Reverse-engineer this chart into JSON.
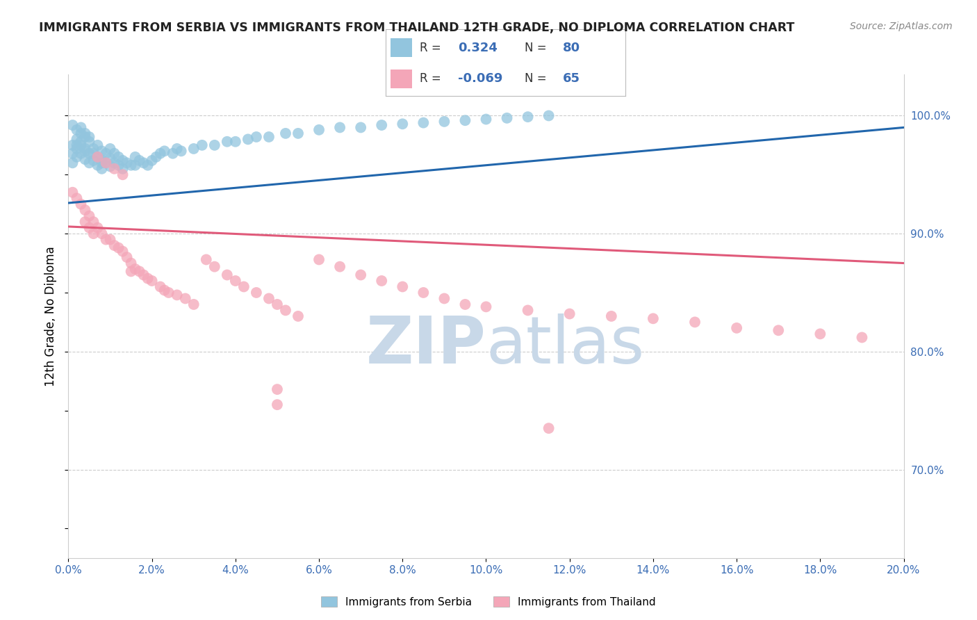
{
  "title": "IMMIGRANTS FROM SERBIA VS IMMIGRANTS FROM THAILAND 12TH GRADE, NO DIPLOMA CORRELATION CHART",
  "source": "Source: ZipAtlas.com",
  "ylabel": "12th Grade, No Diploma",
  "serbia_R": 0.324,
  "serbia_N": 80,
  "thailand_R": -0.069,
  "thailand_N": 65,
  "serbia_color": "#92c5de",
  "thailand_color": "#f4a6b8",
  "serbia_line_color": "#2166ac",
  "thailand_line_color": "#e05a7a",
  "watermark_zip": "ZIP",
  "watermark_atlas": "atlas",
  "watermark_color_zip": "#c8d8e8",
  "watermark_color_atlas": "#c8d8e8",
  "x_min": 0.0,
  "x_max": 0.2,
  "y_min": 0.625,
  "y_max": 1.035,
  "y_ticks": [
    0.7,
    0.8,
    0.9,
    1.0
  ],
  "serbia_x": [
    0.001,
    0.001,
    0.001,
    0.002,
    0.002,
    0.002,
    0.003,
    0.003,
    0.003,
    0.004,
    0.004,
    0.004,
    0.005,
    0.005,
    0.005,
    0.006,
    0.006,
    0.007,
    0.007,
    0.007,
    0.008,
    0.008,
    0.008,
    0.009,
    0.009,
    0.01,
    0.01,
    0.01,
    0.011,
    0.011,
    0.012,
    0.012,
    0.013,
    0.013,
    0.014,
    0.015,
    0.016,
    0.016,
    0.017,
    0.018,
    0.019,
    0.02,
    0.021,
    0.022,
    0.023,
    0.025,
    0.026,
    0.027,
    0.03,
    0.032,
    0.035,
    0.038,
    0.04,
    0.043,
    0.045,
    0.048,
    0.052,
    0.055,
    0.06,
    0.065,
    0.07,
    0.075,
    0.08,
    0.085,
    0.09,
    0.095,
    0.1,
    0.105,
    0.11,
    0.115,
    0.001,
    0.002,
    0.003,
    0.004,
    0.005,
    0.002,
    0.003,
    0.004,
    0.006,
    0.008
  ],
  "serbia_y": [
    0.975,
    0.968,
    0.96,
    0.98,
    0.972,
    0.965,
    0.985,
    0.975,
    0.968,
    0.982,
    0.97,
    0.963,
    0.978,
    0.968,
    0.96,
    0.972,
    0.962,
    0.975,
    0.965,
    0.958,
    0.97,
    0.962,
    0.955,
    0.968,
    0.96,
    0.972,
    0.964,
    0.957,
    0.968,
    0.96,
    0.965,
    0.958,
    0.962,
    0.955,
    0.96,
    0.958,
    0.965,
    0.958,
    0.962,
    0.96,
    0.958,
    0.962,
    0.965,
    0.968,
    0.97,
    0.968,
    0.972,
    0.97,
    0.972,
    0.975,
    0.975,
    0.978,
    0.978,
    0.98,
    0.982,
    0.982,
    0.985,
    0.985,
    0.988,
    0.99,
    0.99,
    0.992,
    0.993,
    0.994,
    0.995,
    0.996,
    0.997,
    0.998,
    0.999,
    1.0,
    0.992,
    0.988,
    0.99,
    0.985,
    0.982,
    0.975,
    0.978,
    0.972,
    0.968,
    0.96
  ],
  "thailand_x": [
    0.001,
    0.002,
    0.003,
    0.004,
    0.004,
    0.005,
    0.005,
    0.006,
    0.006,
    0.007,
    0.008,
    0.009,
    0.01,
    0.011,
    0.012,
    0.013,
    0.014,
    0.015,
    0.015,
    0.016,
    0.017,
    0.018,
    0.019,
    0.02,
    0.022,
    0.023,
    0.024,
    0.026,
    0.028,
    0.03,
    0.033,
    0.035,
    0.038,
    0.04,
    0.042,
    0.045,
    0.048,
    0.05,
    0.052,
    0.055,
    0.06,
    0.065,
    0.07,
    0.075,
    0.08,
    0.085,
    0.09,
    0.095,
    0.1,
    0.11,
    0.12,
    0.13,
    0.14,
    0.15,
    0.16,
    0.17,
    0.18,
    0.19,
    0.007,
    0.009,
    0.011,
    0.013,
    0.05,
    0.05,
    0.115
  ],
  "thailand_y": [
    0.935,
    0.93,
    0.925,
    0.92,
    0.91,
    0.915,
    0.905,
    0.91,
    0.9,
    0.905,
    0.9,
    0.895,
    0.895,
    0.89,
    0.888,
    0.885,
    0.88,
    0.875,
    0.868,
    0.87,
    0.868,
    0.865,
    0.862,
    0.86,
    0.855,
    0.852,
    0.85,
    0.848,
    0.845,
    0.84,
    0.878,
    0.872,
    0.865,
    0.86,
    0.855,
    0.85,
    0.845,
    0.84,
    0.835,
    0.83,
    0.878,
    0.872,
    0.865,
    0.86,
    0.855,
    0.85,
    0.845,
    0.84,
    0.838,
    0.835,
    0.832,
    0.83,
    0.828,
    0.825,
    0.82,
    0.818,
    0.815,
    0.812,
    0.965,
    0.96,
    0.955,
    0.95,
    0.768,
    0.755,
    0.735
  ],
  "serbia_trend_x": [
    0.0,
    0.2
  ],
  "serbia_trend_y": [
    0.926,
    0.99
  ],
  "thailand_trend_x": [
    0.0,
    0.2
  ],
  "thailand_trend_y": [
    0.906,
    0.875
  ]
}
